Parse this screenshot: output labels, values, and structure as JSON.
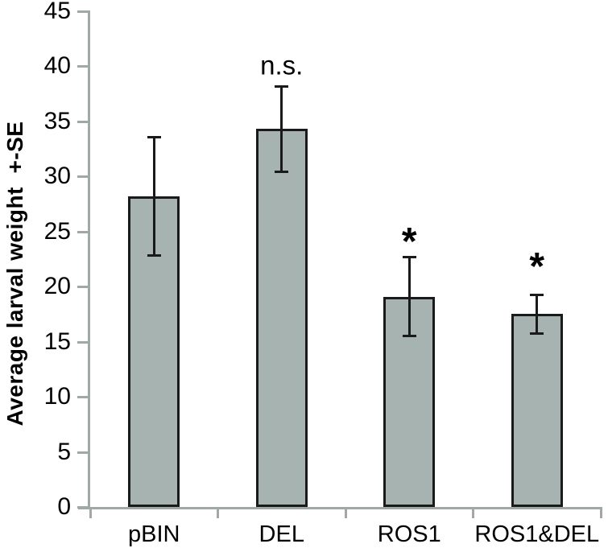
{
  "chart_data": {
    "type": "bar",
    "title": "",
    "xlabel": "",
    "ylabel": "Average larval weight  +-SE",
    "categories": [
      "pBIN",
      "DEL",
      "ROS1",
      "ROS1&DEL"
    ],
    "values": [
      28.2,
      34.3,
      19.1,
      17.5
    ],
    "errors": [
      5.4,
      3.9,
      3.6,
      1.8
    ],
    "yticks": [
      0,
      5,
      10,
      15,
      20,
      25,
      30,
      35,
      40,
      45
    ],
    "ylim": [
      0,
      45
    ],
    "grid": false,
    "legend": "none",
    "annotations": [
      {
        "category": "DEL",
        "text": "n.s.",
        "y": 40.1
      },
      {
        "category": "ROS1",
        "text": "*",
        "y": 24.0
      },
      {
        "category": "ROS1&DEL",
        "text": "*",
        "y": 21.8
      }
    ],
    "colors": {
      "bar_fill": "#a7b3b0",
      "bar_border": "#1a1a1a",
      "error_bar": "#1a1a1a",
      "axis": "#a0a9a6",
      "text": "#000000"
    }
  }
}
